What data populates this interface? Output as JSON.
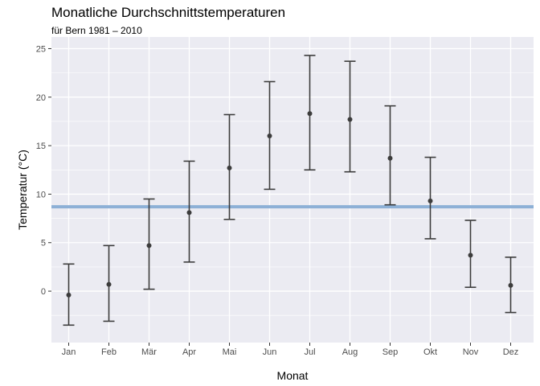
{
  "chart_data": {
    "type": "errorbar",
    "title": "Monatliche Durchschnittstemperaturen",
    "subtitle": "für Bern 1981 – 2010",
    "xlabel": "Monat",
    "ylabel": "Temperatur (°C)",
    "categories": [
      "Jan",
      "Feb",
      "Mär",
      "Apr",
      "Mai",
      "Jun",
      "Jul",
      "Aug",
      "Sep",
      "Okt",
      "Nov",
      "Dez"
    ],
    "mean": [
      -0.4,
      0.7,
      4.7,
      8.1,
      12.7,
      16.0,
      18.3,
      17.7,
      13.7,
      9.3,
      3.7,
      0.6
    ],
    "lower": [
      -3.5,
      -3.1,
      0.2,
      3.0,
      7.4,
      10.5,
      12.5,
      12.3,
      8.9,
      5.4,
      0.4,
      -2.2
    ],
    "upper": [
      2.8,
      4.7,
      9.5,
      13.4,
      18.2,
      21.6,
      24.3,
      23.7,
      19.1,
      13.8,
      7.3,
      3.5
    ],
    "reference_line": 8.7,
    "y_ticks": [
      0,
      5,
      10,
      15,
      20,
      25
    ],
    "ylim": [
      -5.3,
      26.2
    ],
    "grid": true,
    "colors": {
      "panel": "#ebebf2",
      "grid_major": "#ffffff",
      "points": "#3c3c3c",
      "reference_line": "#8db0d6"
    }
  }
}
